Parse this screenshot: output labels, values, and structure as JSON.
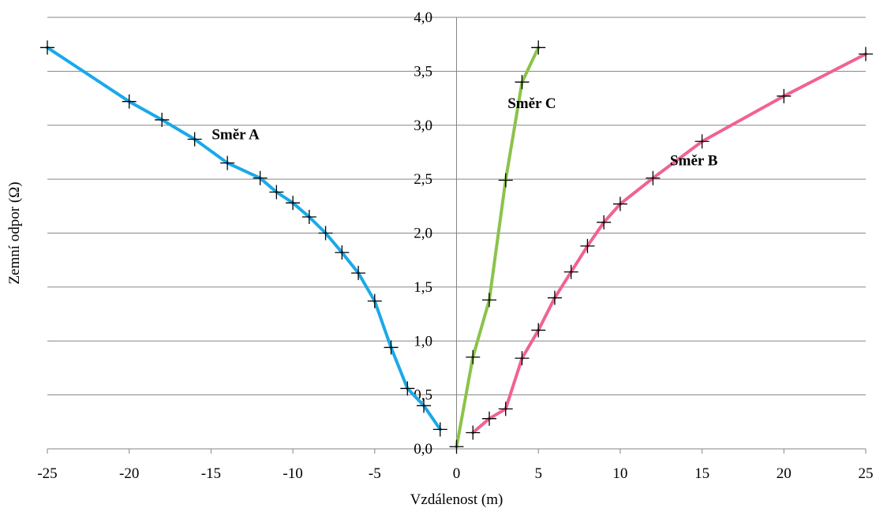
{
  "chart_data": {
    "type": "line",
    "title": "",
    "xlabel": "Vzdálenost (m)",
    "ylabel": "Zemní odpor (Ω)",
    "xlim": [
      -25,
      25
    ],
    "ylim": [
      0,
      4
    ],
    "grid": true,
    "x_ticks": [
      {
        "value": -25,
        "label": "-25"
      },
      {
        "value": -20,
        "label": "-20"
      },
      {
        "value": -15,
        "label": "-15"
      },
      {
        "value": -10,
        "label": "-10"
      },
      {
        "value": -5,
        "label": "-5"
      },
      {
        "value": 0,
        "label": "0"
      },
      {
        "value": 5,
        "label": "5"
      },
      {
        "value": 10,
        "label": "10"
      },
      {
        "value": 15,
        "label": "15"
      },
      {
        "value": 20,
        "label": "20"
      },
      {
        "value": 25,
        "label": "25"
      }
    ],
    "y_ticks": [
      {
        "value": 0,
        "label": "0,0"
      },
      {
        "value": 0.5,
        "label": "0,5"
      },
      {
        "value": 1,
        "label": "1,0"
      },
      {
        "value": 1.5,
        "label": "1,5"
      },
      {
        "value": 2,
        "label": "2,0"
      },
      {
        "value": 2.5,
        "label": "2,5"
      },
      {
        "value": 3,
        "label": "3,0"
      },
      {
        "value": 3.5,
        "label": "3,5"
      },
      {
        "value": 4,
        "label": "4,0"
      }
    ],
    "series": [
      {
        "name": "Směr A",
        "color": "#1aa9e8",
        "points": [
          [
            -1,
            0.18
          ],
          [
            -2,
            0.4
          ],
          [
            -3,
            0.56
          ],
          [
            -4,
            0.94
          ],
          [
            -5,
            1.37
          ],
          [
            -6,
            1.63
          ],
          [
            -7,
            1.82
          ],
          [
            -8,
            2.0
          ],
          [
            -9,
            2.15
          ],
          [
            -10,
            2.28
          ],
          [
            -11,
            2.38
          ],
          [
            -12,
            2.51
          ],
          [
            -14,
            2.65
          ],
          [
            -16,
            2.87
          ],
          [
            -18,
            3.05
          ],
          [
            -20,
            3.22
          ],
          [
            -25,
            3.72
          ]
        ]
      },
      {
        "name": "Směr B",
        "color": "#f06292",
        "points": [
          [
            1,
            0.15
          ],
          [
            2,
            0.28
          ],
          [
            3,
            0.37
          ],
          [
            4,
            0.84
          ],
          [
            5,
            1.1
          ],
          [
            6,
            1.4
          ],
          [
            7,
            1.64
          ],
          [
            8,
            1.88
          ],
          [
            9,
            2.1
          ],
          [
            10,
            2.27
          ],
          [
            12,
            2.51
          ],
          [
            15,
            2.85
          ],
          [
            20,
            3.27
          ],
          [
            25,
            3.66
          ]
        ]
      },
      {
        "name": "Směr C",
        "color": "#8bc34a",
        "points": [
          [
            0,
            0.02
          ],
          [
            1,
            0.85
          ],
          [
            2,
            1.38
          ],
          [
            3,
            2.49
          ],
          [
            4,
            3.4
          ],
          [
            5,
            3.72
          ]
        ]
      }
    ],
    "annotations": [
      {
        "text": "Směr A",
        "x": -13.5,
        "y": 2.87
      },
      {
        "text": "Směr B",
        "x": 14.5,
        "y": 2.63
      },
      {
        "text": "Směr C",
        "x": 4.6,
        "y": 3.16
      }
    ]
  }
}
